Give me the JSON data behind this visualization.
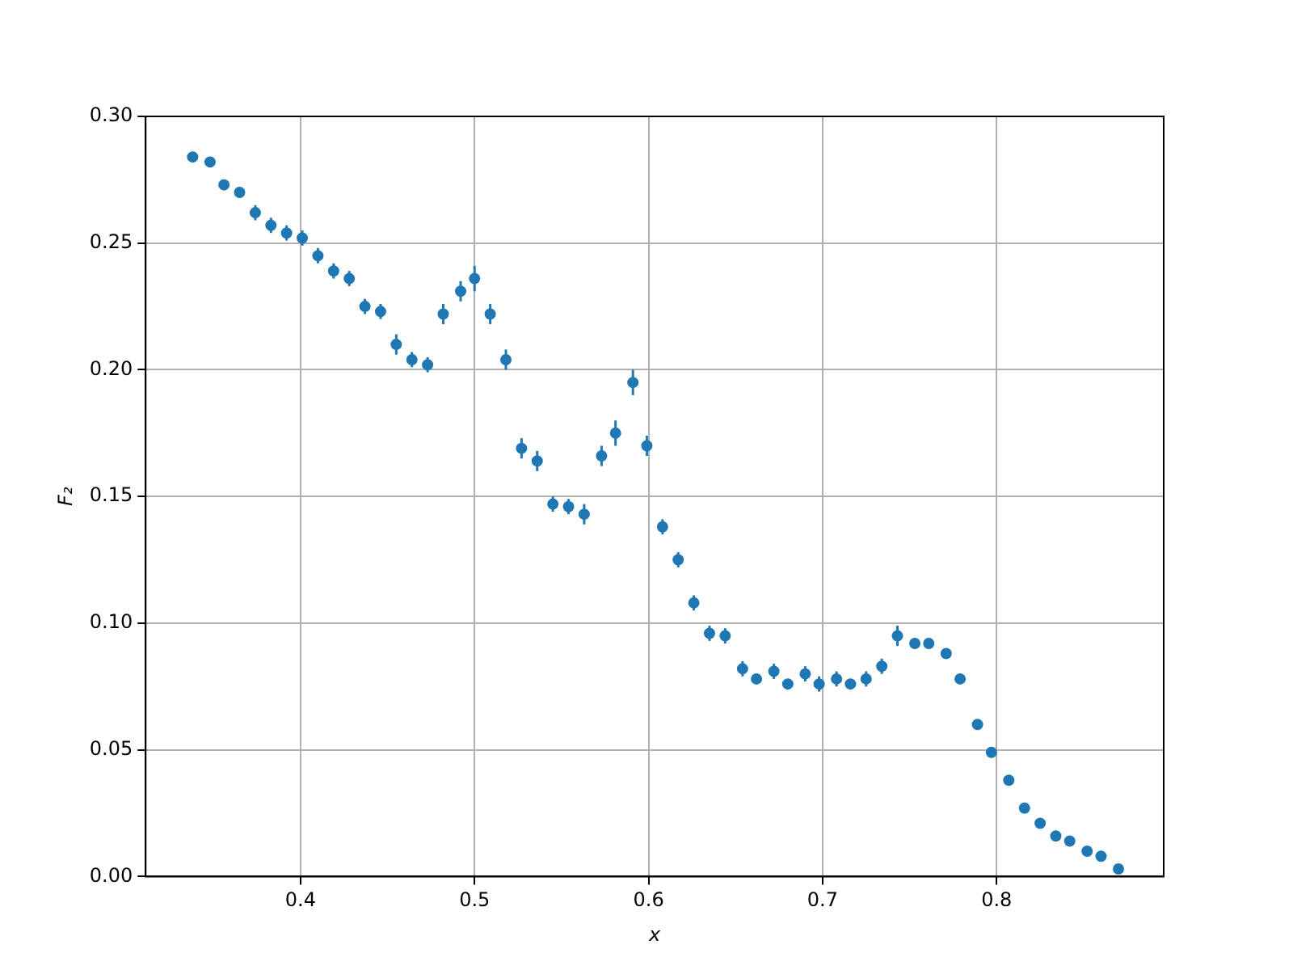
{
  "chart_data": {
    "type": "scatter",
    "xlabel": "x",
    "ylabel": "F₂",
    "x": [
      0.338,
      0.348,
      0.356,
      0.365,
      0.374,
      0.383,
      0.392,
      0.401,
      0.41,
      0.419,
      0.428,
      0.437,
      0.446,
      0.455,
      0.464,
      0.473,
      0.482,
      0.492,
      0.5,
      0.509,
      0.518,
      0.527,
      0.536,
      0.545,
      0.554,
      0.563,
      0.573,
      0.581,
      0.591,
      0.599,
      0.608,
      0.617,
      0.626,
      0.635,
      0.644,
      0.654,
      0.662,
      0.672,
      0.68,
      0.69,
      0.698,
      0.708,
      0.716,
      0.725,
      0.734,
      0.743,
      0.753,
      0.761,
      0.771,
      0.779,
      0.789,
      0.797,
      0.807,
      0.816,
      0.825,
      0.834,
      0.842,
      0.852,
      0.86,
      0.87
    ],
    "series": [
      {
        "color": "#1f77b4",
        "values": [
          0.284,
          0.282,
          0.273,
          0.27,
          0.262,
          0.257,
          0.254,
          0.252,
          0.245,
          0.239,
          0.236,
          0.225,
          0.223,
          0.21,
          0.204,
          0.202,
          0.222,
          0.231,
          0.236,
          0.222,
          0.204,
          0.169,
          0.164,
          0.147,
          0.146,
          0.143,
          0.166,
          0.175,
          0.195,
          0.17,
          0.138,
          0.125,
          0.108,
          0.096,
          0.095,
          0.082,
          0.078,
          0.081,
          0.076,
          0.08,
          0.076,
          0.078,
          0.076,
          0.078,
          0.083,
          0.095,
          0.092,
          0.092,
          0.088,
          0.078,
          0.06,
          0.049,
          0.038,
          0.027,
          0.021,
          0.016,
          0.014,
          0.01,
          0.008,
          0.003
        ],
        "errors": [
          0.002,
          0.002,
          0.002,
          0.002,
          0.003,
          0.003,
          0.003,
          0.003,
          0.003,
          0.003,
          0.003,
          0.003,
          0.003,
          0.004,
          0.003,
          0.003,
          0.004,
          0.004,
          0.005,
          0.004,
          0.004,
          0.004,
          0.004,
          0.003,
          0.003,
          0.004,
          0.004,
          0.005,
          0.005,
          0.004,
          0.003,
          0.003,
          0.003,
          0.003,
          0.003,
          0.003,
          0.002,
          0.003,
          0.002,
          0.003,
          0.003,
          0.003,
          0.002,
          0.003,
          0.003,
          0.004,
          0.002,
          0.002,
          0.002,
          0.002,
          0.001,
          0.001,
          0.001,
          0.001,
          0.001,
          0.001,
          0.001,
          0.001,
          0.001,
          0.001
        ]
      }
    ],
    "xlim": [
      0.311,
      0.896
    ],
    "xticks": [
      0.4,
      0.5,
      0.6,
      0.7,
      0.8
    ],
    "ylim": [
      0,
      0.3
    ],
    "yticks": [
      {
        "value": 0,
        "label": "0.00"
      },
      0.05,
      {
        "value": 0.1,
        "label": "0.10"
      },
      0.15,
      {
        "value": 0.2,
        "label": "0.20"
      },
      0.25,
      {
        "value": 0.3,
        "label": "0.30"
      }
    ],
    "grid": true,
    "marker": "circle"
  }
}
